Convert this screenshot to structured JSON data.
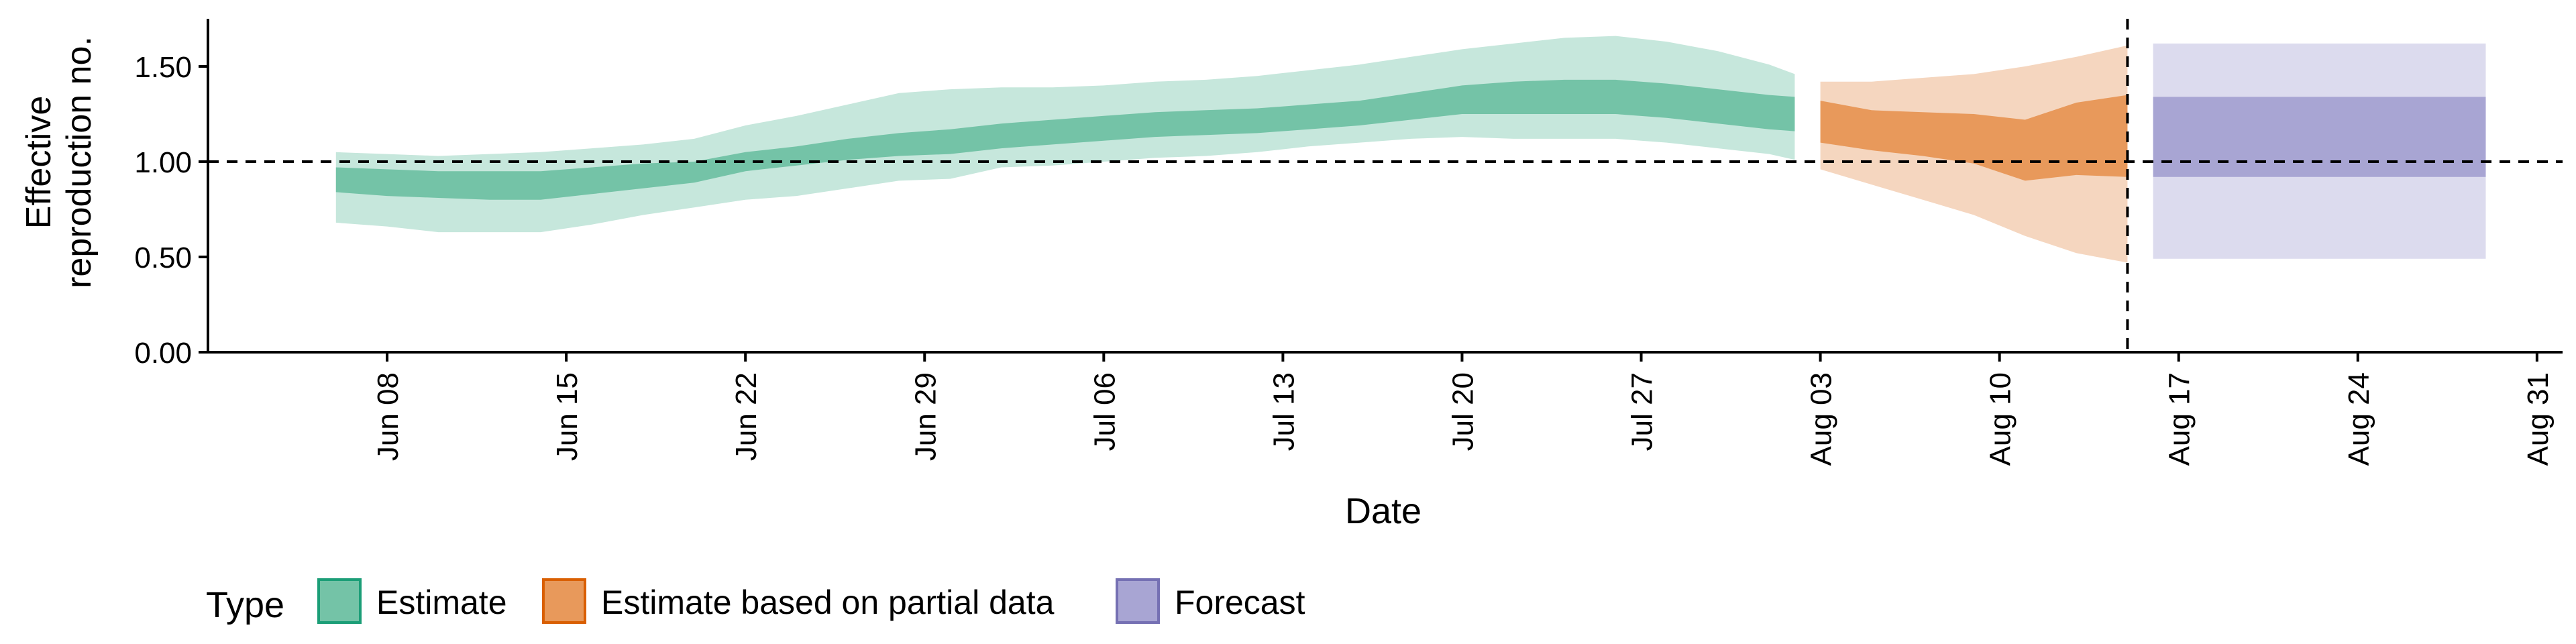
{
  "chart_data": {
    "type": "area",
    "y_axis_title": [
      "Effective",
      "reproduction no."
    ],
    "x_axis_title": "Date",
    "ylim": [
      0.0,
      1.75
    ],
    "yticks": [
      0.0,
      0.5,
      1.0,
      1.5
    ],
    "ytick_labels": [
      "0.00",
      "0.50",
      "1.00",
      "1.50"
    ],
    "xlim": [
      "2020-06-01",
      "2020-09-01"
    ],
    "xticks": [
      "2020-06-08",
      "2020-06-15",
      "2020-06-22",
      "2020-06-29",
      "2020-07-06",
      "2020-07-13",
      "2020-07-20",
      "2020-07-27",
      "2020-08-03",
      "2020-08-10",
      "2020-08-17",
      "2020-08-24",
      "2020-08-31"
    ],
    "xtick_labels": [
      "Jun 08",
      "Jun 15",
      "Jun 22",
      "Jun 29",
      "Jul 06",
      "Jul 13",
      "Jul 20",
      "Jul 27",
      "Aug 03",
      "Aug 10",
      "Aug 17",
      "Aug 24",
      "Aug 31"
    ],
    "reference_line_y": 1.0,
    "reference_line_date": "2020-08-15",
    "legend": {
      "title": "Type",
      "position": "bottom-left",
      "entries": [
        {
          "label": "Estimate",
          "fill": "#74c3a7",
          "stroke": "#1b9e77"
        },
        {
          "label": "Estimate based on partial data",
          "fill": "#e8995b",
          "stroke": "#d95f02"
        },
        {
          "label": "Forecast",
          "fill": "#a8a5d3",
          "stroke": "#7570b3"
        }
      ]
    },
    "series": [
      {
        "name": "Estimate",
        "outer_color": "#c6e7dc",
        "inner_color": "#74c3a7",
        "points": [
          {
            "date": "2020-06-06",
            "lo90": 0.68,
            "lo50": 0.84,
            "hi50": 0.97,
            "hi90": 1.05
          },
          {
            "date": "2020-06-08",
            "lo90": 0.66,
            "lo50": 0.82,
            "hi50": 0.96,
            "hi90": 1.04
          },
          {
            "date": "2020-06-10",
            "lo90": 0.63,
            "lo50": 0.81,
            "hi50": 0.95,
            "hi90": 1.03
          },
          {
            "date": "2020-06-12",
            "lo90": 0.63,
            "lo50": 0.8,
            "hi50": 0.95,
            "hi90": 1.04
          },
          {
            "date": "2020-06-14",
            "lo90": 0.63,
            "lo50": 0.8,
            "hi50": 0.95,
            "hi90": 1.05
          },
          {
            "date": "2020-06-16",
            "lo90": 0.67,
            "lo50": 0.83,
            "hi50": 0.97,
            "hi90": 1.07
          },
          {
            "date": "2020-06-18",
            "lo90": 0.72,
            "lo50": 0.86,
            "hi50": 0.99,
            "hi90": 1.09
          },
          {
            "date": "2020-06-20",
            "lo90": 0.76,
            "lo50": 0.89,
            "hi50": 1.0,
            "hi90": 1.12
          },
          {
            "date": "2020-06-22",
            "lo90": 0.8,
            "lo50": 0.95,
            "hi50": 1.05,
            "hi90": 1.19
          },
          {
            "date": "2020-06-24",
            "lo90": 0.82,
            "lo50": 0.98,
            "hi50": 1.08,
            "hi90": 1.24
          },
          {
            "date": "2020-06-26",
            "lo90": 0.86,
            "lo50": 1.01,
            "hi50": 1.12,
            "hi90": 1.3
          },
          {
            "date": "2020-06-28",
            "lo90": 0.9,
            "lo50": 1.03,
            "hi50": 1.15,
            "hi90": 1.36
          },
          {
            "date": "2020-06-30",
            "lo90": 0.91,
            "lo50": 1.04,
            "hi50": 1.17,
            "hi90": 1.38
          },
          {
            "date": "2020-07-02",
            "lo90": 0.97,
            "lo50": 1.07,
            "hi50": 1.2,
            "hi90": 1.39
          },
          {
            "date": "2020-07-04",
            "lo90": 0.98,
            "lo50": 1.09,
            "hi50": 1.22,
            "hi90": 1.39
          },
          {
            "date": "2020-07-06",
            "lo90": 1.0,
            "lo50": 1.11,
            "hi50": 1.24,
            "hi90": 1.4
          },
          {
            "date": "2020-07-08",
            "lo90": 1.02,
            "lo50": 1.13,
            "hi50": 1.26,
            "hi90": 1.42
          },
          {
            "date": "2020-07-10",
            "lo90": 1.03,
            "lo50": 1.14,
            "hi50": 1.27,
            "hi90": 1.43
          },
          {
            "date": "2020-07-12",
            "lo90": 1.05,
            "lo50": 1.15,
            "hi50": 1.28,
            "hi90": 1.45
          },
          {
            "date": "2020-07-14",
            "lo90": 1.08,
            "lo50": 1.17,
            "hi50": 1.3,
            "hi90": 1.48
          },
          {
            "date": "2020-07-16",
            "lo90": 1.1,
            "lo50": 1.19,
            "hi50": 1.32,
            "hi90": 1.51
          },
          {
            "date": "2020-07-18",
            "lo90": 1.12,
            "lo50": 1.22,
            "hi50": 1.36,
            "hi90": 1.55
          },
          {
            "date": "2020-07-20",
            "lo90": 1.13,
            "lo50": 1.25,
            "hi50": 1.4,
            "hi90": 1.59
          },
          {
            "date": "2020-07-22",
            "lo90": 1.12,
            "lo50": 1.25,
            "hi50": 1.42,
            "hi90": 1.62
          },
          {
            "date": "2020-07-24",
            "lo90": 1.12,
            "lo50": 1.25,
            "hi50": 1.43,
            "hi90": 1.65
          },
          {
            "date": "2020-07-26",
            "lo90": 1.12,
            "lo50": 1.25,
            "hi50": 1.43,
            "hi90": 1.66
          },
          {
            "date": "2020-07-28",
            "lo90": 1.1,
            "lo50": 1.23,
            "hi50": 1.41,
            "hi90": 1.63
          },
          {
            "date": "2020-07-30",
            "lo90": 1.07,
            "lo50": 1.2,
            "hi50": 1.38,
            "hi90": 1.58
          },
          {
            "date": "2020-08-01",
            "lo90": 1.04,
            "lo50": 1.17,
            "hi50": 1.35,
            "hi90": 1.51
          },
          {
            "date": "2020-08-02",
            "lo90": 1.01,
            "lo50": 1.16,
            "hi50": 1.34,
            "hi90": 1.46
          }
        ]
      },
      {
        "name": "Estimate based on partial data",
        "outer_color": "#f5d6bf",
        "inner_color": "#e8995b",
        "points": [
          {
            "date": "2020-08-03",
            "lo90": 0.96,
            "lo50": 1.1,
            "hi50": 1.32,
            "hi90": 1.42
          },
          {
            "date": "2020-08-05",
            "lo90": 0.88,
            "lo50": 1.06,
            "hi50": 1.27,
            "hi90": 1.42
          },
          {
            "date": "2020-08-07",
            "lo90": 0.8,
            "lo50": 1.03,
            "hi50": 1.26,
            "hi90": 1.44
          },
          {
            "date": "2020-08-09",
            "lo90": 0.72,
            "lo50": 0.99,
            "hi50": 1.25,
            "hi90": 1.46
          },
          {
            "date": "2020-08-11",
            "lo90": 0.61,
            "lo50": 0.9,
            "hi50": 1.22,
            "hi90": 1.5
          },
          {
            "date": "2020-08-13",
            "lo90": 0.52,
            "lo50": 0.93,
            "hi50": 1.31,
            "hi90": 1.55
          },
          {
            "date": "2020-08-15",
            "lo90": 0.47,
            "lo50": 0.92,
            "hi50": 1.35,
            "hi90": 1.61
          }
        ]
      },
      {
        "name": "Forecast",
        "outer_color": "#dcdbee",
        "inner_color": "#a8a5d3",
        "points": [
          {
            "date": "2020-08-16",
            "lo90": 0.49,
            "lo50": 0.92,
            "hi50": 1.34,
            "hi90": 1.62
          },
          {
            "date": "2020-08-29",
            "lo90": 0.49,
            "lo50": 0.92,
            "hi50": 1.34,
            "hi90": 1.62
          }
        ]
      }
    ]
  }
}
